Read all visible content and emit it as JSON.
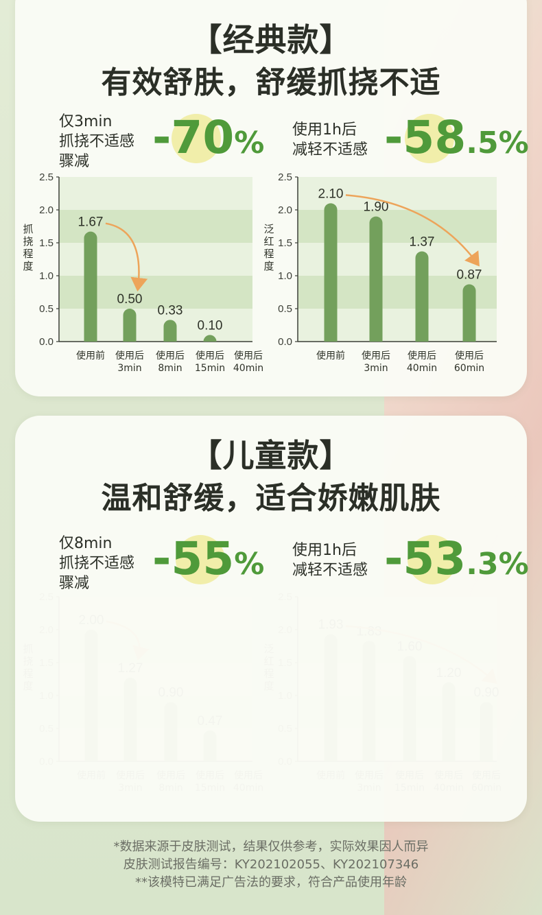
{
  "colors": {
    "bar": "#73a05c",
    "accent_text": "#4f9a3a",
    "arrow": "#eda45a",
    "band_dark": "#d4e5c4",
    "band_light": "#e9f2df"
  },
  "sections": [
    {
      "title1": "【经典款】",
      "title2": "有效舒肤，舒缓抓挠不适",
      "stat_left": {
        "lines": [
          "仅3min",
          "抓挠不适感",
          "骤减"
        ],
        "value_main": "-70",
        "value_suffix": "%"
      },
      "stat_right": {
        "lines": [
          "使用1h后",
          "减轻不适感"
        ],
        "value_main": "-58",
        "value_suffix": ".5%"
      }
    },
    {
      "title1": "【儿童款】",
      "title2": "温和舒缓，适合娇嫩肌肤",
      "stat_left": {
        "lines": [
          "仅8min",
          "抓挠不适感",
          "骤减"
        ],
        "value_main": "-55",
        "value_suffix": "%"
      },
      "stat_right": {
        "lines": [
          "使用1h后",
          "减轻不适感"
        ],
        "value_main": "-53",
        "value_suffix": ".3%"
      }
    }
  ],
  "chart_data": [
    {
      "type": "bar",
      "ylabel": "抓挠程度",
      "ylim": [
        0,
        2.5
      ],
      "yticks": [
        "0.0",
        "0.5",
        "1.0",
        "1.5",
        "2.0",
        "2.5"
      ],
      "categories": [
        [
          "使用前"
        ],
        [
          "使用后",
          "3min"
        ],
        [
          "使用后",
          "8min"
        ],
        [
          "使用后",
          "15min"
        ],
        [
          "使用后",
          "40min"
        ]
      ],
      "values": [
        1.67,
        0.5,
        0.33,
        0.1,
        null
      ],
      "labels": [
        "1.67",
        "0.50",
        "0.33",
        "0.10",
        ""
      ],
      "arrow_from": 0,
      "arrow_to": 1
    },
    {
      "type": "bar",
      "ylabel": "泛红程度",
      "ylim": [
        0,
        2.5
      ],
      "yticks": [
        "0.0",
        "0.5",
        "1.0",
        "1.5",
        "2.0",
        "2.5"
      ],
      "categories": [
        [
          "使用前"
        ],
        [
          "使用后",
          "3min"
        ],
        [
          "使用后",
          "40min"
        ],
        [
          "使用后",
          "60min"
        ]
      ],
      "values": [
        2.1,
        1.9,
        1.37,
        0.87
      ],
      "labels": [
        "2.10",
        "1.90",
        "1.37",
        "0.87"
      ],
      "arrow_from": 0,
      "arrow_to": 3
    },
    {
      "type": "bar",
      "ylabel": "抓挠程度",
      "ylim": [
        0,
        2.5
      ],
      "yticks": [
        "0.0",
        "0.5",
        "1.0",
        "1.5",
        "2.0",
        "2.5"
      ],
      "categories": [
        [
          "使用前"
        ],
        [
          "使用后",
          "3min"
        ],
        [
          "使用后",
          "8min"
        ],
        [
          "使用后",
          "15min"
        ],
        [
          "使用后",
          "40min"
        ]
      ],
      "values": [
        2.0,
        1.27,
        0.9,
        0.47,
        null
      ],
      "labels": [
        "2.00",
        "1.27",
        "0.90",
        "0.47",
        ""
      ],
      "arrow_from": 0,
      "arrow_to": 1
    },
    {
      "type": "bar",
      "ylabel": "泛红程度",
      "ylim": [
        0,
        2.5
      ],
      "yticks": [
        "0.0",
        "0.5",
        "1.0",
        "1.5",
        "2.0",
        "2.5"
      ],
      "categories": [
        [
          "使用前"
        ],
        [
          "使用后",
          "3min"
        ],
        [
          "使用后",
          "15min"
        ],
        [
          "使用后",
          "40min"
        ],
        [
          "使用后",
          "60min"
        ]
      ],
      "values": [
        1.93,
        1.83,
        1.6,
        1.2,
        0.9
      ],
      "labels": [
        "1.93",
        "1.83",
        "1.60",
        "1.20",
        "0.90"
      ],
      "arrow_from": 0,
      "arrow_to": 4
    }
  ],
  "footnotes": [
    "*数据来源于皮肤测试，结果仅供参考，实际效果因人而异",
    "皮肤测试报告编号：KY202102055、KY202107346",
    "**该模特已满足广告法的要求，符合产品使用年龄"
  ]
}
